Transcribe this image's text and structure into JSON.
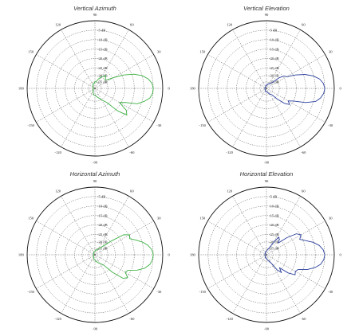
{
  "chart_data": [
    {
      "type": "polar",
      "title": "Vertical Azimuth",
      "radial_ticks": [
        "-5 dB",
        "-10 dB",
        "-15 dB",
        "-20 dB",
        "-25 dB",
        "-30 dB",
        "-35 dB"
      ],
      "angle_ticks": [
        "90",
        "60",
        "30",
        "0",
        "-30",
        "-60",
        "-90",
        "-120",
        "-150",
        "180",
        "150",
        "120"
      ],
      "rlim_db": [
        -35,
        0
      ],
      "grid": true,
      "color": "#3cb043",
      "series": [
        {
          "theta_deg": [
            0,
            5,
            10,
            15,
            20,
            25,
            30,
            35,
            40,
            45,
            50,
            60,
            70,
            80,
            90,
            100,
            110,
            120,
            135,
            150,
            165,
            180,
            195,
            210,
            225,
            240,
            250,
            260,
            270,
            280,
            290,
            300,
            310,
            315,
            320,
            325,
            330,
            335,
            340,
            345,
            350,
            355,
            360
          ],
          "r_db": [
            0,
            -0.6,
            -2.5,
            -5.5,
            -10,
            -16,
            -22,
            -26,
            -27,
            -26,
            -25,
            -27,
            -29,
            -31,
            -31,
            -32,
            -32,
            -33,
            -33,
            -34,
            -34,
            -34,
            -34,
            -34,
            -33,
            -33,
            -32,
            -31,
            -31,
            -30,
            -29,
            -27,
            -24,
            -16,
            -10,
            -12,
            -18,
            -15,
            -8,
            -4.5,
            -1.5,
            -0.3,
            0
          ]
        }
      ]
    },
    {
      "type": "polar",
      "title": "Vertical Elevation",
      "radial_ticks": [
        "-5 dB",
        "-10 dB",
        "-15 dB",
        "-20 dB",
        "-25 dB",
        "-30 dB",
        "-35 dB"
      ],
      "angle_ticks": [
        "90",
        "60",
        "30",
        "0",
        "-30",
        "-60",
        "-90",
        "-120",
        "-150",
        "180",
        "150",
        "120"
      ],
      "rlim_db": [
        -35,
        0
      ],
      "grid": true,
      "color": "#2b3f9c",
      "series": [
        {
          "theta_deg": [
            0,
            5,
            10,
            15,
            20,
            25,
            30,
            35,
            40,
            45,
            50,
            60,
            70,
            80,
            90,
            100,
            110,
            120,
            135,
            150,
            165,
            180,
            195,
            210,
            225,
            240,
            250,
            260,
            270,
            280,
            290,
            300,
            310,
            315,
            320,
            325,
            330,
            335,
            340,
            345,
            350,
            355,
            360
          ],
          "r_db": [
            0,
            -0.7,
            -2.6,
            -6,
            -10.5,
            -16,
            -21,
            -22,
            -25,
            -30,
            -31,
            -32,
            -32,
            -33,
            -33,
            -33,
            -34,
            -34,
            -34,
            -34,
            -34,
            -34,
            -34,
            -34,
            -34,
            -34,
            -33,
            -33,
            -33,
            -33,
            -32,
            -31,
            -30,
            -26,
            -21,
            -18,
            -20,
            -17,
            -10,
            -4.5,
            -2,
            -0.5,
            0
          ]
        }
      ]
    },
    {
      "type": "polar",
      "title": "Horizontal Azimuth",
      "radial_ticks": [
        "-5 dB",
        "-10 dB",
        "-15 dB",
        "-20 dB",
        "-25 dB",
        "-30 dB",
        "-35 dB"
      ],
      "angle_ticks": [
        "90",
        "60",
        "30",
        "0",
        "-30",
        "-60",
        "-90",
        "-120",
        "-150",
        "180",
        "150",
        "120"
      ],
      "rlim_db": [
        -35,
        0
      ],
      "grid": true,
      "color": "#3cb043",
      "series": [
        {
          "theta_deg": [
            0,
            5,
            10,
            15,
            20,
            25,
            30,
            35,
            40,
            45,
            50,
            60,
            70,
            80,
            90,
            100,
            110,
            120,
            135,
            150,
            165,
            180,
            195,
            210,
            225,
            240,
            250,
            260,
            270,
            280,
            290,
            300,
            310,
            315,
            320,
            325,
            330,
            335,
            340,
            345,
            350,
            355,
            360
          ],
          "r_db": [
            0,
            -0.7,
            -2.6,
            -5.5,
            -9,
            -12,
            -11,
            -14,
            -22,
            -27,
            -29,
            -31,
            -32,
            -32,
            -33,
            -33,
            -33,
            -34,
            -34,
            -34,
            -34,
            -34,
            -34,
            -34,
            -34,
            -33,
            -33,
            -32,
            -32,
            -31,
            -30,
            -29,
            -27,
            -20,
            -13,
            -11,
            -14,
            -13,
            -8,
            -4,
            -1.5,
            -0.4,
            0
          ]
        }
      ]
    },
    {
      "type": "polar",
      "title": "Horizontal Elevation",
      "radial_ticks": [
        "-5 dB",
        "-10 dB",
        "-15 dB",
        "-20 dB",
        "-25 dB",
        "-30 dB",
        "-35 dB"
      ],
      "angle_ticks": [
        "90",
        "60",
        "30",
        "0",
        "-30",
        "-60",
        "-90",
        "-120",
        "-150",
        "180",
        "150",
        "120"
      ],
      "rlim_db": [
        -35,
        0
      ],
      "grid": true,
      "color": "#2b3f9c",
      "series": [
        {
          "theta_deg": [
            0,
            5,
            10,
            15,
            20,
            25,
            30,
            35,
            40,
            45,
            50,
            55,
            60,
            70,
            80,
            90,
            100,
            110,
            120,
            135,
            150,
            165,
            180,
            195,
            210,
            225,
            240,
            250,
            260,
            270,
            280,
            290,
            300,
            305,
            310,
            315,
            320,
            325,
            330,
            335,
            340,
            345,
            350,
            355,
            360
          ],
          "r_db": [
            0,
            -0.8,
            -2.8,
            -6,
            -10,
            -13,
            -11,
            -13,
            -19,
            -25,
            -23,
            -22,
            -26,
            -31,
            -32,
            -33,
            -33,
            -33,
            -34,
            -34,
            -34,
            -34,
            -34,
            -34,
            -34,
            -34,
            -34,
            -33,
            -33,
            -33,
            -32,
            -31,
            -29,
            -24,
            -21,
            -24,
            -18,
            -14,
            -15,
            -14,
            -9,
            -5,
            -2,
            -0.5,
            0
          ]
        }
      ]
    }
  ]
}
